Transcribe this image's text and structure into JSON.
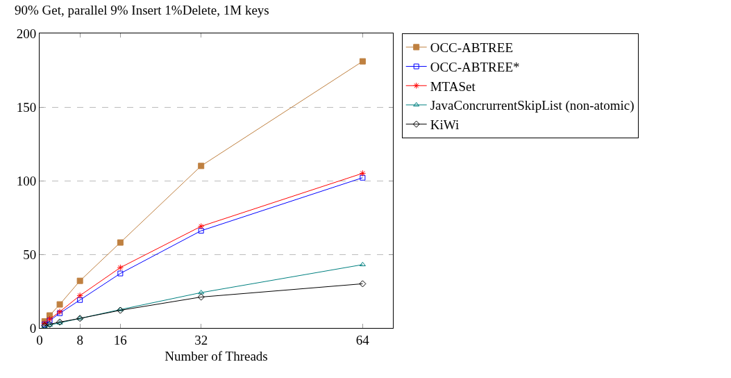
{
  "chart_data": {
    "type": "line",
    "title": "90% Get, parallel 9% Insert 1%Delete, 1M keys",
    "xlabel": "Number of Threads",
    "x": [
      1,
      2,
      4,
      8,
      16,
      32,
      64
    ],
    "series": [
      {
        "name": "OCC-ABTREE",
        "color": "#bf8040",
        "marker": "square",
        "values": [
          4.5,
          8.5,
          16,
          32,
          58,
          110,
          181
        ]
      },
      {
        "name": "OCC-ABTREE*",
        "color": "#0000ff",
        "marker": "square-open",
        "values": [
          2.5,
          5,
          10,
          19,
          37,
          66,
          102
        ]
      },
      {
        "name": "MTASet",
        "color": "#ff0000",
        "marker": "cross",
        "values": [
          3,
          6,
          11,
          22,
          41,
          69,
          105
        ]
      },
      {
        "name": "JavaConcrurrentSkipList (non-atomic)",
        "color": "#008080",
        "marker": "triangle",
        "values": [
          1,
          2,
          3.5,
          6.5,
          12.5,
          24,
          43
        ]
      },
      {
        "name": "KiWi",
        "color": "#000000",
        "marker": "diamond",
        "values": [
          1.5,
          2.5,
          4,
          6.5,
          12,
          21,
          30
        ]
      }
    ],
    "xlim": [
      0,
      70
    ],
    "xticks": [
      0,
      8,
      16,
      32,
      64
    ],
    "ylim": [
      0,
      200
    ],
    "yticks": [
      0,
      50,
      100,
      150,
      200
    ],
    "grid": "y",
    "legend": "right",
    "line_style": "solid"
  }
}
